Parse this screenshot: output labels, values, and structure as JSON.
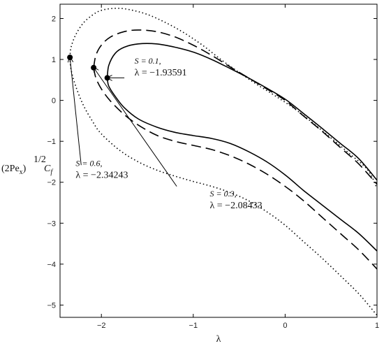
{
  "chart_data": {
    "type": "line",
    "title": "",
    "xlabel": "λ",
    "ylabel": {
      "base": "(2Pe",
      "sub_x": "x",
      "close": ")",
      "exp": "1/2",
      "C": "C",
      "sub_f": "f"
    },
    "xlim": [
      -2.45,
      1.0
    ],
    "ylim": [
      -5.3,
      2.35
    ],
    "xticks": [
      -2,
      -1,
      0,
      1
    ],
    "xtick_labels": [
      "−2",
      "−1",
      "0",
      "1"
    ],
    "yticks": [
      -5,
      -4,
      -3,
      -2,
      -1,
      0,
      1,
      2
    ],
    "ytick_labels": [
      "−5",
      "−4",
      "−3",
      "−2",
      "−1",
      "0",
      "1",
      "2"
    ],
    "grid": false,
    "series": [
      {
        "style": "solid",
        "upper": [
          [
            -1.93591,
            0.55
          ],
          [
            -1.92,
            0.85
          ],
          [
            -1.85,
            1.15
          ],
          [
            -1.75,
            1.3
          ],
          [
            -1.6,
            1.38
          ],
          [
            -1.4,
            1.38
          ],
          [
            -1.2,
            1.3
          ],
          [
            -1.0,
            1.18
          ],
          [
            -0.8,
            1.0
          ],
          [
            -0.6,
            0.78
          ],
          [
            -0.4,
            0.55
          ],
          [
            -0.2,
            0.3
          ],
          [
            0.0,
            0.03
          ],
          [
            0.2,
            -0.32
          ],
          [
            0.4,
            -0.68
          ],
          [
            0.6,
            -1.05
          ],
          [
            0.8,
            -1.42
          ],
          [
            1.0,
            -1.95
          ]
        ],
        "lower": [
          [
            -1.93591,
            0.55
          ],
          [
            -1.92,
            0.35
          ],
          [
            -1.85,
            0.1
          ],
          [
            -1.75,
            -0.18
          ],
          [
            -1.6,
            -0.45
          ],
          [
            -1.4,
            -0.65
          ],
          [
            -1.2,
            -0.78
          ],
          [
            -1.0,
            -0.86
          ],
          [
            -0.8,
            -0.93
          ],
          [
            -0.6,
            -1.05
          ],
          [
            -0.4,
            -1.25
          ],
          [
            -0.2,
            -1.5
          ],
          [
            0.0,
            -1.82
          ],
          [
            0.2,
            -2.2
          ],
          [
            0.4,
            -2.55
          ],
          [
            0.6,
            -2.9
          ],
          [
            0.8,
            -3.25
          ],
          [
            1.0,
            -3.68
          ]
        ]
      },
      {
        "style": "dashed",
        "upper": [
          [
            -2.08433,
            0.8
          ],
          [
            -2.06,
            1.1
          ],
          [
            -2.0,
            1.35
          ],
          [
            -1.9,
            1.55
          ],
          [
            -1.75,
            1.68
          ],
          [
            -1.6,
            1.72
          ],
          [
            -1.4,
            1.68
          ],
          [
            -1.2,
            1.55
          ],
          [
            -1.0,
            1.35
          ],
          [
            -0.8,
            1.1
          ],
          [
            -0.6,
            0.82
          ],
          [
            -0.4,
            0.55
          ],
          [
            -0.2,
            0.28
          ],
          [
            0.0,
            0.0
          ],
          [
            0.2,
            -0.38
          ],
          [
            0.4,
            -0.75
          ],
          [
            0.6,
            -1.15
          ],
          [
            0.8,
            -1.55
          ],
          [
            1.0,
            -2.05
          ]
        ],
        "lower": [
          [
            -2.08433,
            0.8
          ],
          [
            -2.06,
            0.55
          ],
          [
            -2.0,
            0.28
          ],
          [
            -1.9,
            -0.02
          ],
          [
            -1.75,
            -0.35
          ],
          [
            -1.6,
            -0.6
          ],
          [
            -1.4,
            -0.85
          ],
          [
            -1.2,
            -1.0
          ],
          [
            -1.0,
            -1.1
          ],
          [
            -0.8,
            -1.2
          ],
          [
            -0.6,
            -1.35
          ],
          [
            -0.4,
            -1.55
          ],
          [
            -0.2,
            -1.8
          ],
          [
            0.0,
            -2.1
          ],
          [
            0.2,
            -2.45
          ],
          [
            0.4,
            -2.85
          ],
          [
            0.6,
            -3.25
          ],
          [
            0.8,
            -3.65
          ],
          [
            1.0,
            -4.12
          ]
        ]
      },
      {
        "style": "dotted",
        "upper": [
          [
            -2.34243,
            1.05
          ],
          [
            -2.33,
            1.3
          ],
          [
            -2.28,
            1.6
          ],
          [
            -2.2,
            1.88
          ],
          [
            -2.1,
            2.08
          ],
          [
            -2.0,
            2.2
          ],
          [
            -1.85,
            2.25
          ],
          [
            -1.7,
            2.22
          ],
          [
            -1.5,
            2.1
          ],
          [
            -1.3,
            1.9
          ],
          [
            -1.1,
            1.65
          ],
          [
            -0.9,
            1.35
          ],
          [
            -0.7,
            1.0
          ],
          [
            -0.5,
            0.68
          ],
          [
            -0.3,
            0.38
          ],
          [
            -0.1,
            0.1
          ],
          [
            0.1,
            -0.2
          ],
          [
            0.3,
            -0.55
          ],
          [
            0.5,
            -0.92
          ],
          [
            0.7,
            -1.3
          ],
          [
            0.9,
            -1.7
          ],
          [
            1.0,
            -2.15
          ]
        ],
        "lower": [
          [
            -2.34243,
            1.05
          ],
          [
            -2.33,
            0.75
          ],
          [
            -2.28,
            0.35
          ],
          [
            -2.2,
            -0.1
          ],
          [
            -2.1,
            -0.5
          ],
          [
            -2.0,
            -0.82
          ],
          [
            -1.8,
            -1.22
          ],
          [
            -1.6,
            -1.5
          ],
          [
            -1.4,
            -1.7
          ],
          [
            -1.2,
            -1.85
          ],
          [
            -1.0,
            -1.98
          ],
          [
            -0.8,
            -2.1
          ],
          [
            -0.6,
            -2.25
          ],
          [
            -0.4,
            -2.45
          ],
          [
            -0.2,
            -2.72
          ],
          [
            0.0,
            -3.05
          ],
          [
            0.2,
            -3.45
          ],
          [
            0.4,
            -3.85
          ],
          [
            0.6,
            -4.28
          ],
          [
            0.8,
            -4.72
          ],
          [
            1.0,
            -5.25
          ]
        ]
      }
    ],
    "points": [
      {
        "x": -1.93591,
        "y": 0.55
      },
      {
        "x": -2.08433,
        "y": 0.8
      },
      {
        "x": -2.34243,
        "y": 1.05
      }
    ],
    "annotations": [
      {
        "s_text": "S = 0.1,",
        "l_text": "λ = −1.93591",
        "point": [
          -1.93591,
          0.55
        ],
        "text_at": [
          -1.64,
          0.9
        ],
        "arrow_to_text": [
          -1.75,
          0.55
        ]
      },
      {
        "s_text": "S = 0.6,",
        "l_text": "λ = −2.34243",
        "point": [
          -2.34243,
          1.05
        ],
        "text_at": [
          -2.28,
          -1.6
        ],
        "arrow_to_text": [
          -2.22,
          -1.58
        ]
      },
      {
        "s_text": "S = 0.3,",
        "l_text": "λ = −2.08433",
        "point": [
          -2.08433,
          0.8
        ],
        "text_at": [
          -0.82,
          -2.35
        ],
        "arrow_to_text": [
          -1.18,
          -2.1
        ]
      }
    ]
  }
}
